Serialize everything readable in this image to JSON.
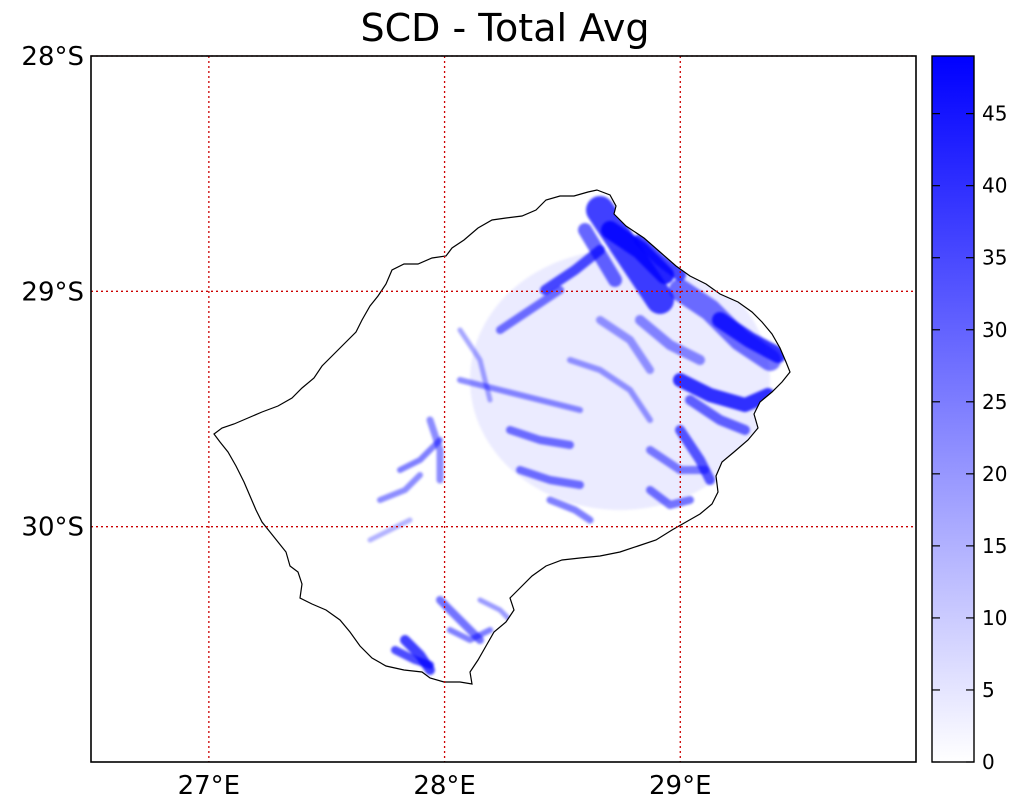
{
  "title": "SCD - Total Avg",
  "map": {
    "region": "country outline",
    "lon_range": [
      26.5,
      30.0
    ],
    "lat_range": [
      -31.0,
      -28.0
    ],
    "lon_ticks": [
      {
        "value": 27,
        "label": "27°E"
      },
      {
        "value": 28,
        "label": "28°E"
      },
      {
        "value": 29,
        "label": "29°E"
      }
    ],
    "lat_ticks": [
      {
        "value": -28,
        "label": "28°S"
      },
      {
        "value": -29,
        "label": "29°S"
      },
      {
        "value": -30,
        "label": "30°S"
      }
    ],
    "gridline_color": "#cc0000",
    "outline_color": "#000000"
  },
  "colorbar": {
    "min": 0,
    "max": 49,
    "color_low": "#ffffff",
    "color_high": "#0000ff",
    "ticks": [
      {
        "value": 0,
        "label": "0"
      },
      {
        "value": 5,
        "label": "5"
      },
      {
        "value": 10,
        "label": "10"
      },
      {
        "value": 15,
        "label": "15"
      },
      {
        "value": 20,
        "label": "20"
      },
      {
        "value": 25,
        "label": "25"
      },
      {
        "value": 30,
        "label": "30"
      },
      {
        "value": 35,
        "label": "35"
      },
      {
        "value": 40,
        "label": "40"
      },
      {
        "value": 45,
        "label": "45"
      }
    ]
  }
}
